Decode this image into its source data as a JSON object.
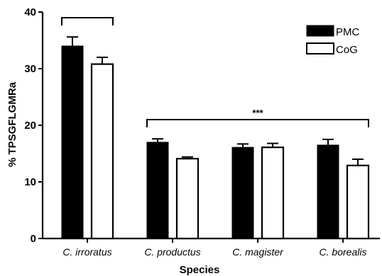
{
  "chart_data": {
    "type": "bar",
    "title": "",
    "xlabel": "Species",
    "ylabel": "% TPSGFLGMRa",
    "ylim": [
      0,
      40
    ],
    "yticks": [
      0,
      10,
      20,
      30,
      40
    ],
    "grid": false,
    "legend_position": "top-right",
    "categories": [
      "C. irroratus",
      "C. productus",
      "C. magister",
      "C. borealis"
    ],
    "series": [
      {
        "name": "PMC",
        "color": "#000000",
        "fill": "solid",
        "values": [
          34,
          17,
          16.1,
          16.5
        ],
        "errors": [
          1.6,
          0.6,
          0.6,
          1.0
        ]
      },
      {
        "name": "CoG",
        "color": "#000000",
        "fill": "open",
        "values": [
          30.8,
          14.1,
          16.1,
          12.9
        ],
        "errors": [
          1.2,
          0.3,
          0.7,
          1.1
        ]
      }
    ],
    "annotations": [
      {
        "label": "",
        "bracket_over": [
          "C. irroratus"
        ],
        "bracket_at": 39
      },
      {
        "label": "***",
        "bracket_over": [
          "C. productus",
          "C. magister",
          "C. borealis"
        ],
        "bracket_at": 21
      }
    ]
  }
}
